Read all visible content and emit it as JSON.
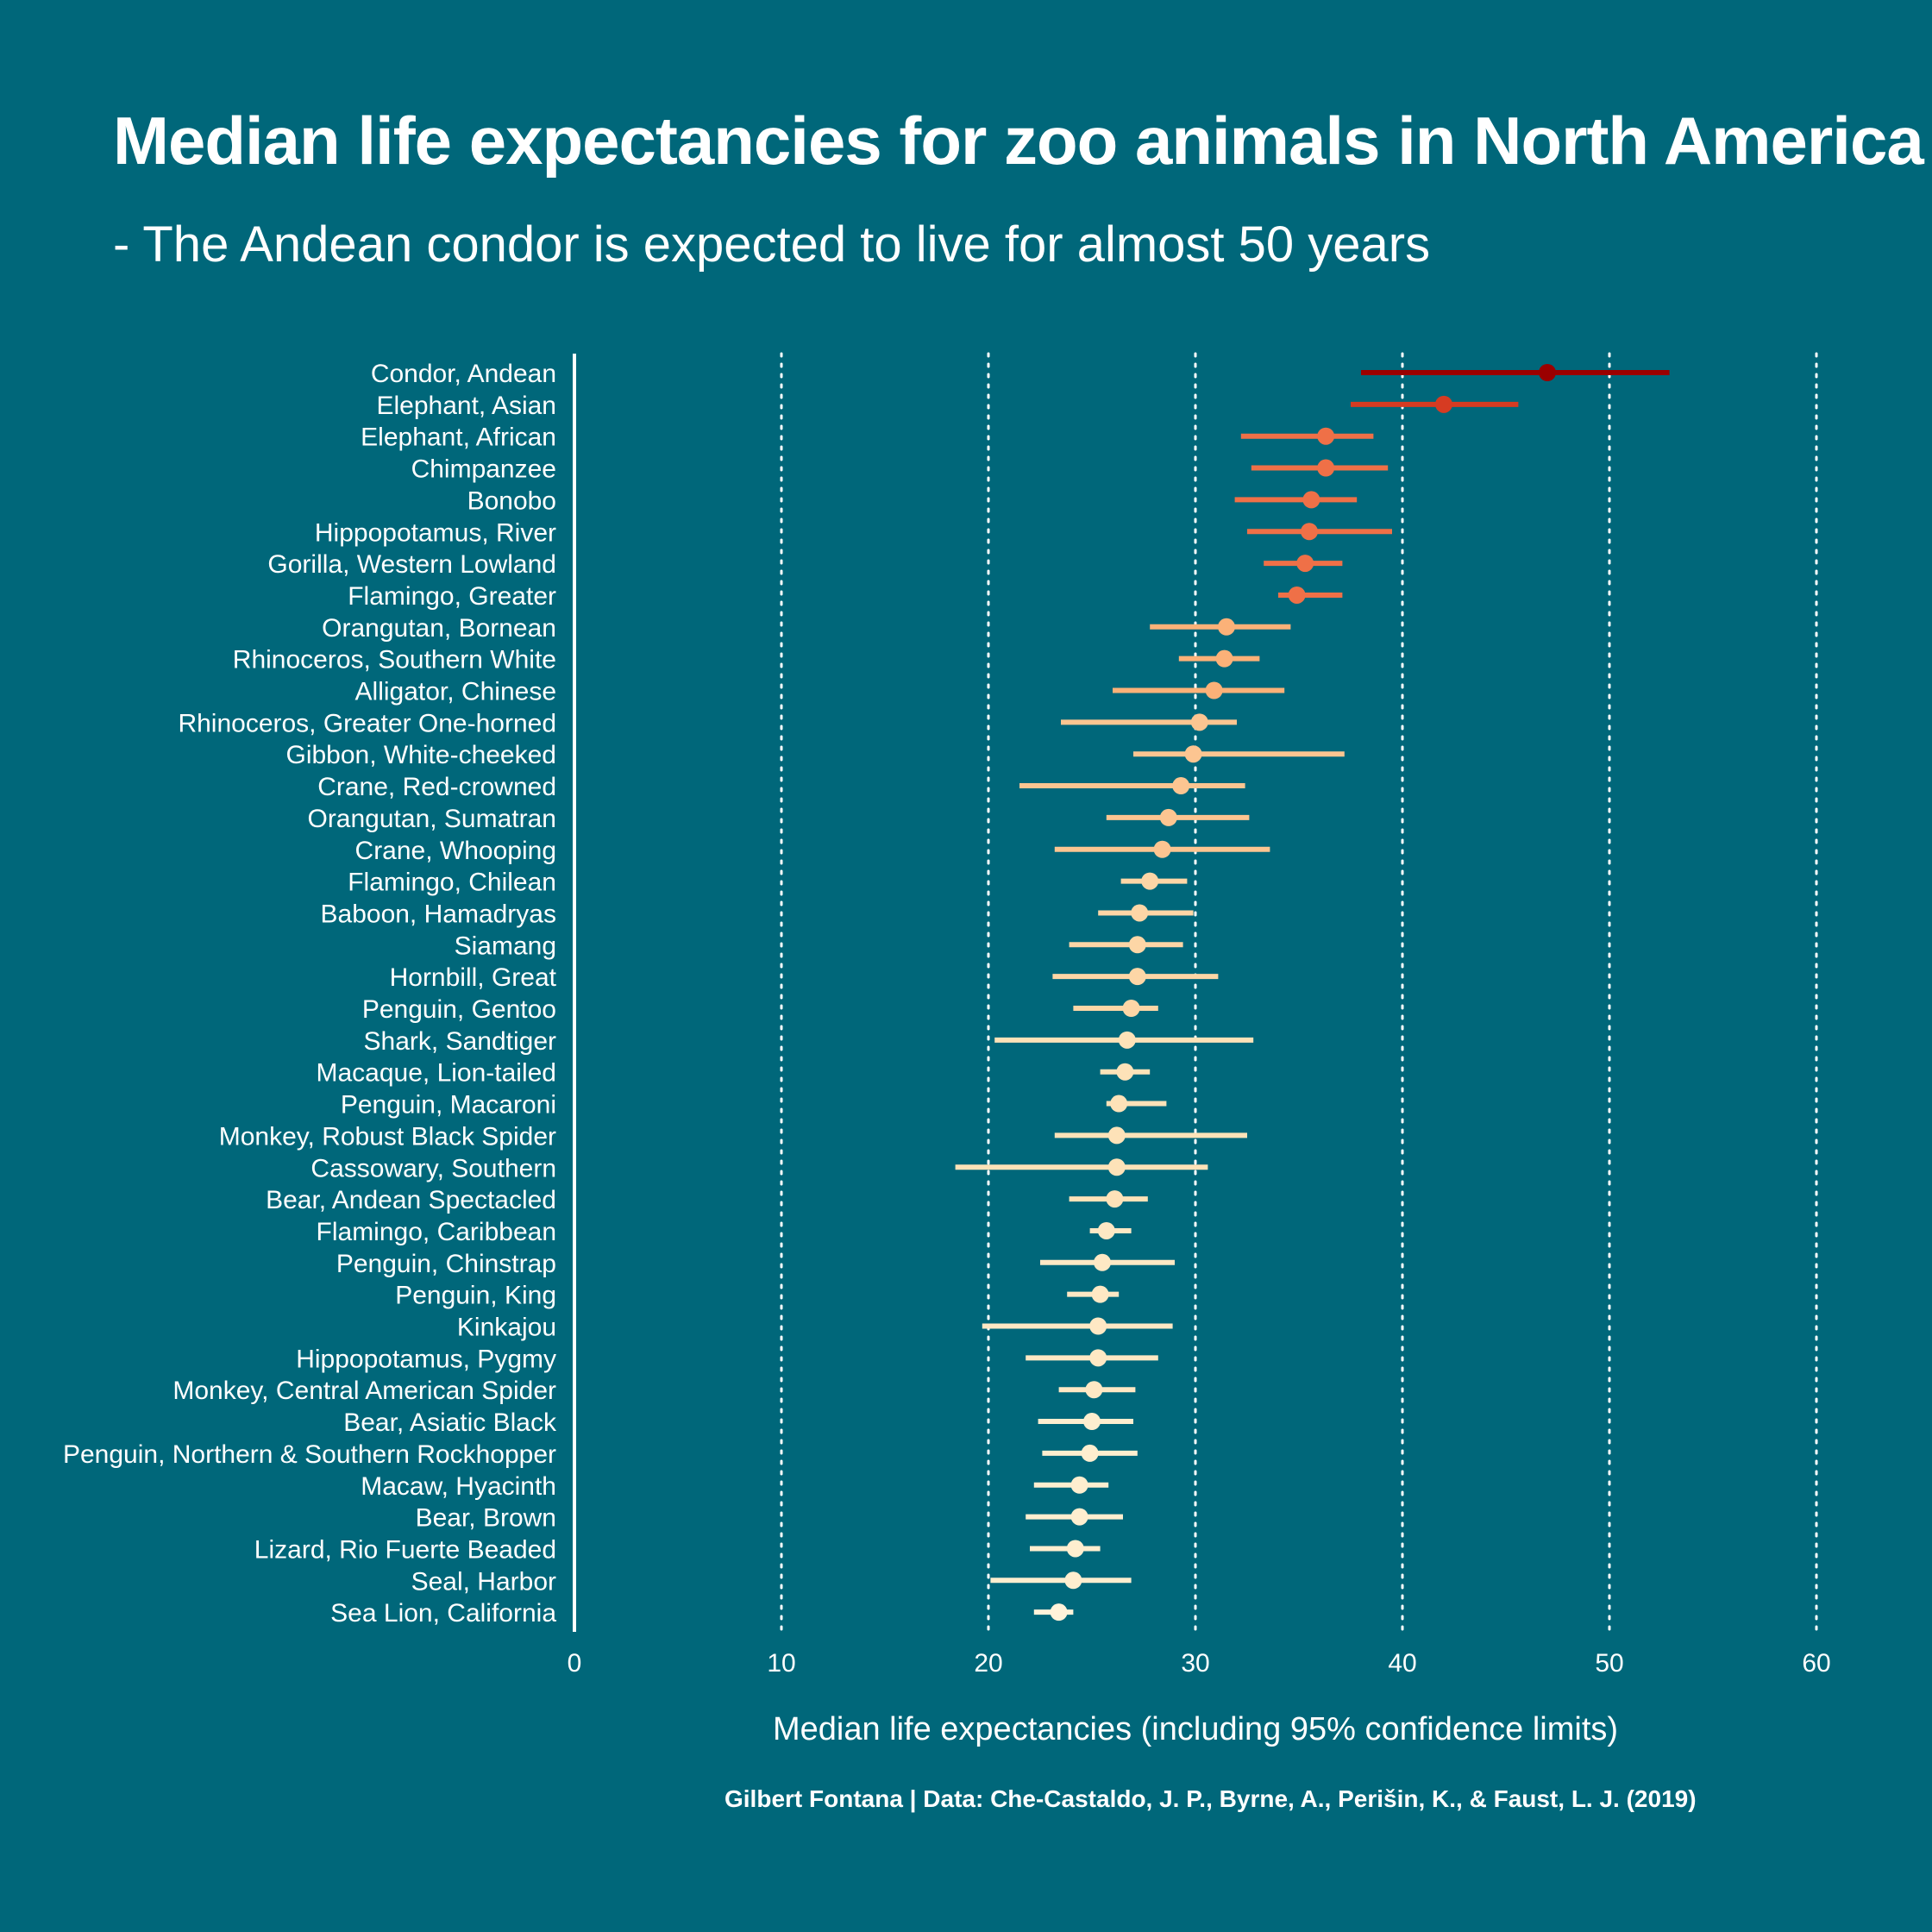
{
  "title": "Median life expectancies for zoo animals in North America",
  "subtitle": "- The Andean condor is expected to live for almost 50 years",
  "caption": "Gilbert Fontana | Data: Che-Castaldo, J. P., Byrne, A., Perišin, K., & Faust, L. J. (2019)",
  "colors": {
    "background": "#00677a",
    "text": "#ffffff",
    "grid": "#ffffff"
  },
  "chart_data": {
    "type": "dot-range",
    "xlabel": "Median life expectancies (including 95% confidence limits)",
    "ylabel": "",
    "xlim": [
      0,
      60
    ],
    "xticks": [
      0,
      10,
      20,
      30,
      40,
      50,
      60
    ],
    "grid": "vertical dotted",
    "categories": [
      "Condor, Andean",
      "Elephant, Asian",
      "Elephant, African",
      "Chimpanzee",
      "Bonobo",
      "Hippopotamus, River",
      "Gorilla, Western Lowland",
      "Flamingo, Greater",
      "Orangutan, Bornean",
      "Rhinoceros, Southern White",
      "Alligator, Chinese",
      "Rhinoceros, Greater One-horned",
      "Gibbon, White-cheeked",
      "Crane, Red-crowned",
      "Orangutan, Sumatran",
      "Crane, Whooping",
      "Flamingo, Chilean",
      "Baboon, Hamadryas",
      "Siamang",
      "Hornbill, Great",
      "Penguin, Gentoo",
      "Shark, Sandtiger",
      "Macaque, Lion-tailed",
      "Penguin, Macaroni",
      "Monkey, Robust Black Spider",
      "Cassowary, Southern",
      "Bear, Andean Spectacled",
      "Flamingo, Caribbean",
      "Penguin, Chinstrap",
      "Penguin, King",
      "Kinkajou",
      "Hippopotamus, Pygmy",
      "Monkey, Central American Spider",
      "Bear, Asiatic Black",
      "Penguin, Northern & Southern Rockhopper",
      "Macaw, Hyacinth",
      "Bear, Brown",
      "Lizard, Rio Fuerte Beaded",
      "Seal, Harbor",
      "Sea Lion, California"
    ],
    "median": [
      47.0,
      42.0,
      36.3,
      36.3,
      35.6,
      35.5,
      35.3,
      34.9,
      31.5,
      31.4,
      30.9,
      30.2,
      29.9,
      29.3,
      28.7,
      28.4,
      27.8,
      27.3,
      27.2,
      27.2,
      26.9,
      26.7,
      26.6,
      26.3,
      26.2,
      26.2,
      26.1,
      25.7,
      25.5,
      25.4,
      25.3,
      25.3,
      25.1,
      25.0,
      24.9,
      24.4,
      24.4,
      24.2,
      24.1,
      23.4
    ],
    "lower": [
      38.0,
      37.5,
      32.2,
      32.7,
      31.9,
      32.5,
      33.3,
      34.0,
      27.8,
      29.2,
      26.0,
      23.5,
      27.0,
      21.5,
      25.7,
      23.2,
      26.4,
      25.3,
      23.9,
      23.1,
      24.1,
      20.3,
      25.4,
      25.7,
      23.2,
      18.4,
      23.9,
      24.9,
      22.5,
      23.8,
      19.7,
      21.8,
      23.4,
      22.4,
      22.6,
      22.2,
      21.8,
      22.0,
      20.1,
      22.2
    ],
    "upper": [
      52.9,
      45.6,
      38.6,
      39.3,
      37.8,
      39.5,
      37.1,
      37.1,
      34.6,
      33.1,
      34.3,
      32.0,
      37.2,
      32.4,
      32.6,
      33.6,
      29.6,
      29.9,
      29.4,
      31.1,
      28.2,
      32.8,
      27.8,
      28.6,
      32.5,
      30.6,
      27.7,
      26.9,
      29.0,
      26.3,
      28.9,
      28.2,
      27.1,
      27.0,
      27.2,
      25.8,
      26.5,
      25.4,
      26.9,
      24.1
    ],
    "colors": [
      "#9b0000",
      "#d63b22",
      "#ef7047",
      "#ef7047",
      "#ef7047",
      "#ef7047",
      "#ef7047",
      "#ef7047",
      "#fbb178",
      "#fbb178",
      "#fbb178",
      "#fcc591",
      "#fcc591",
      "#fcc591",
      "#fcc591",
      "#fcc591",
      "#fdd6a6",
      "#fdd6a6",
      "#fdd6a6",
      "#fdd6a6",
      "#fdd6a6",
      "#fde2b8",
      "#fde2b8",
      "#fde2b8",
      "#fde2b8",
      "#fde2b8",
      "#fde2b8",
      "#fee8c4",
      "#fee8c4",
      "#fee8c4",
      "#fee8c4",
      "#fee8c4",
      "#fee8c4",
      "#feeecf",
      "#feeecf",
      "#feeecf",
      "#feeecf",
      "#feeecf",
      "#feeecf",
      "#fff3da"
    ]
  }
}
